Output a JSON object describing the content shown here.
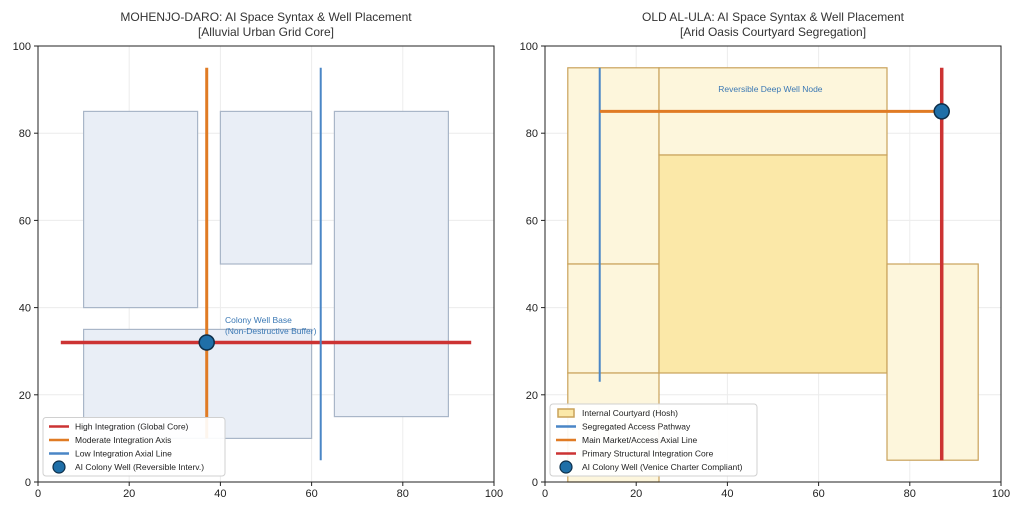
{
  "chart_data": [
    {
      "type": "scatter",
      "title": "MOHENJO-DARO: AI Space Syntax & Well Placement",
      "subtitle": "[Alluvial Urban Grid Core]",
      "xlim": [
        0,
        100
      ],
      "ylim": [
        0,
        100
      ],
      "xticks": [
        0,
        20,
        40,
        60,
        80,
        100
      ],
      "yticks": [
        0,
        20,
        40,
        60,
        80,
        100
      ],
      "grid": true,
      "legend_position": "bottom-left",
      "blocks": [
        {
          "x0": 10,
          "y0": 40,
          "x1": 35,
          "y1": 85
        },
        {
          "x0": 40,
          "y0": 50,
          "x1": 60,
          "y1": 85
        },
        {
          "x0": 65,
          "y0": 15,
          "x1": 90,
          "y1": 85
        },
        {
          "x0": 10,
          "y0": 10,
          "x1": 60,
          "y1": 35
        }
      ],
      "block_style": {
        "fill": "#e9eef6",
        "stroke": "#a9b6c8"
      },
      "lines": [
        {
          "x": [
            5,
            95
          ],
          "y": [
            32,
            32
          ],
          "color": "#cc3333",
          "width": 3.5
        },
        {
          "x": [
            37,
            37
          ],
          "y": [
            10,
            95
          ],
          "color": "#e07b24",
          "width": 3
        },
        {
          "x": [
            62,
            62
          ],
          "y": [
            5,
            95
          ],
          "color": "#4a86c6",
          "width": 2
        }
      ],
      "well": {
        "x": 37,
        "y": 32
      },
      "annotation": {
        "text": "Colony Well Base",
        "text2": "(Non-Destructive Buffer)",
        "x": 41,
        "y": 36.5,
        "color": "#3b78b4"
      },
      "legend": [
        {
          "type": "line",
          "label": "High Integration (Global Core)",
          "color": "#cc3333"
        },
        {
          "type": "line",
          "label": "Moderate Integration Axis",
          "color": "#e07b24"
        },
        {
          "type": "line",
          "label": "Low Integration Axial Line",
          "color": "#4a86c6"
        },
        {
          "type": "marker",
          "label": "AI Colony Well (Reversible Interv.)",
          "color": "#1f6fa8"
        }
      ]
    },
    {
      "type": "scatter",
      "title": "OLD AL-ULA: AI Space Syntax & Well Placement",
      "subtitle": "[Arid Oasis Courtyard Segregation]",
      "xlim": [
        0,
        100
      ],
      "ylim": [
        0,
        100
      ],
      "xticks": [
        0,
        20,
        40,
        60,
        80,
        100
      ],
      "yticks": [
        0,
        20,
        40,
        60,
        80,
        100
      ],
      "grid": true,
      "legend_position": "bottom-left",
      "blocks": [
        {
          "x0": 5,
          "y0": 50,
          "x1": 25,
          "y1": 95
        },
        {
          "x0": 25,
          "y0": 75,
          "x1": 75,
          "y1": 95
        },
        {
          "x0": 5,
          "y0": 25,
          "x1": 25,
          "y1": 50
        },
        {
          "x0": 5,
          "y0": 0,
          "x1": 25,
          "y1": 25
        },
        {
          "x0": 25,
          "y0": 25,
          "x1": 75,
          "y1": 75,
          "emphasis": true
        },
        {
          "x0": 75,
          "y0": 5,
          "x1": 95,
          "y1": 50
        }
      ],
      "block_style": {
        "fill": "#fdf6dc",
        "stroke": "#c9a25a",
        "emphasis_fill": "#fbe8a8"
      },
      "lines": [
        {
          "x": [
            12,
            12
          ],
          "y": [
            23,
            95
          ],
          "color": "#4a86c6",
          "width": 2
        },
        {
          "x": [
            12,
            87
          ],
          "y": [
            85,
            85
          ],
          "color": "#e07b24",
          "width": 3
        },
        {
          "x": [
            87,
            87
          ],
          "y": [
            5,
            95
          ],
          "color": "#cc3333",
          "width": 3.5
        }
      ],
      "well": {
        "x": 87,
        "y": 85
      },
      "annotation": {
        "text": "Reversible Deep Well Node",
        "text2": "",
        "x": 38,
        "y": 89.5,
        "color": "#3b78b4"
      },
      "legend": [
        {
          "type": "patch",
          "label": "Internal Courtyard (Hosh)",
          "color": "#fbe8a8",
          "edge": "#c9a25a"
        },
        {
          "type": "line",
          "label": "Segregated Access Pathway",
          "color": "#4a86c6"
        },
        {
          "type": "line",
          "label": "Main Market/Access Axial Line",
          "color": "#e07b24"
        },
        {
          "type": "line",
          "label": "Primary Structural Integration Core",
          "color": "#cc3333"
        },
        {
          "type": "marker",
          "label": "AI Colony Well (Venice Charter Compliant)",
          "color": "#1f6fa8"
        }
      ]
    }
  ]
}
